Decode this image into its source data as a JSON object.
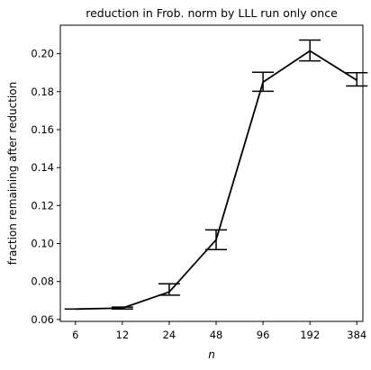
{
  "chart_data": {
    "type": "line",
    "title": "reduction in Frob. norm by LLL run only once",
    "xlabel": "n",
    "ylabel": "fraction remaining after reduction",
    "x_scale": "log2",
    "x_ticks": [
      6,
      12,
      24,
      48,
      96,
      192,
      384
    ],
    "xlim": [
      4.8,
      420
    ],
    "ylim": [
      0.059,
      0.215
    ],
    "y_ticks": [
      0.06,
      0.08,
      0.1,
      0.12,
      0.14,
      0.16,
      0.18,
      0.2
    ],
    "y_tick_labels": [
      "0.06",
      "0.08",
      "0.10",
      "0.12",
      "0.14",
      "0.16",
      "0.18",
      "0.20"
    ],
    "grid": false,
    "series": [
      {
        "x": [
          6,
          12,
          24,
          48,
          96,
          192,
          384
        ],
        "y": [
          0.0655,
          0.066,
          0.0745,
          0.102,
          0.185,
          0.2015,
          0.186
        ],
        "err_low": [
          0.0655,
          0.0655,
          0.0728,
          0.0968,
          0.1802,
          0.1962,
          0.183
        ],
        "err_high": [
          0.0655,
          0.0665,
          0.0788,
          0.1072,
          0.1902,
          0.2072,
          0.19
        ],
        "color": "#000000"
      }
    ]
  }
}
